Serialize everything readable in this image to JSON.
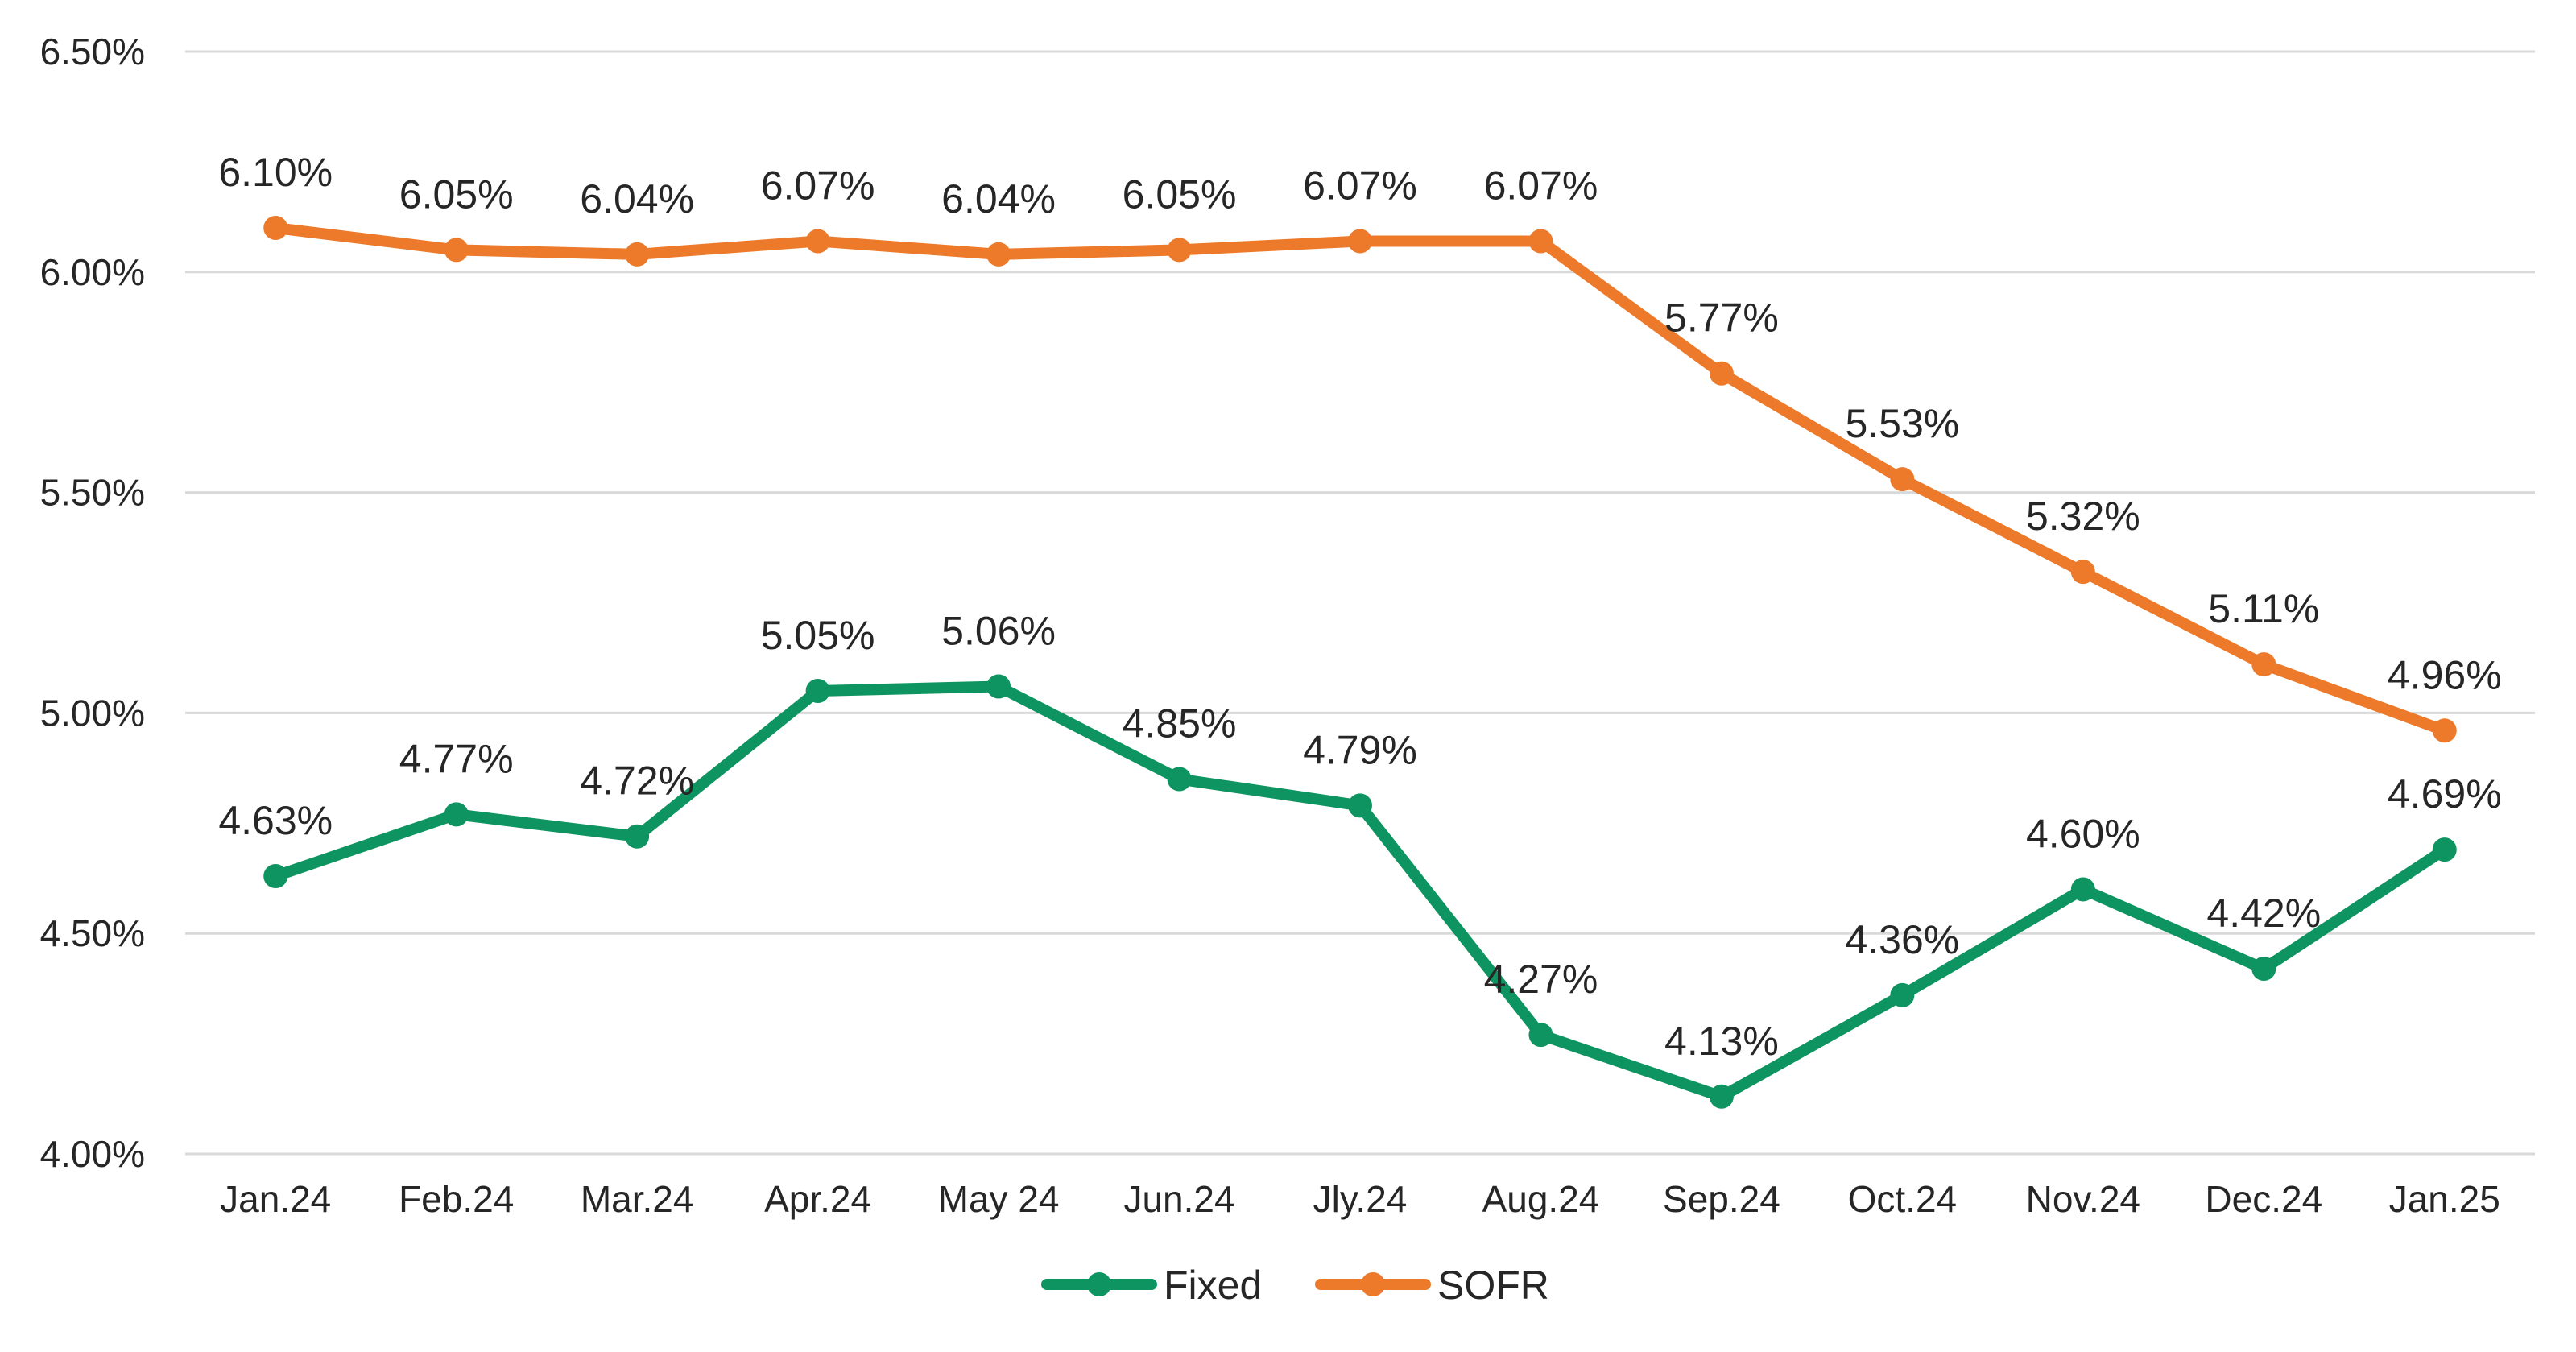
{
  "chart_data": {
    "type": "line",
    "categories": [
      "Jan.24",
      "Feb.24",
      "Mar.24",
      "Apr.24",
      "May 24",
      "Jun.24",
      "Jly.24",
      "Aug.24",
      "Sep.24",
      "Oct.24",
      "Nov.24",
      "Dec.24",
      "Jan.25"
    ],
    "series": [
      {
        "name": "Fixed",
        "color": "#0E9460",
        "values": [
          4.63,
          4.77,
          4.72,
          5.05,
          5.06,
          4.85,
          4.79,
          4.27,
          4.13,
          4.36,
          4.6,
          4.42,
          4.69
        ],
        "labels": [
          "4.63%",
          "4.77%",
          "4.72%",
          "5.05%",
          "5.06%",
          "4.85%",
          "4.79%",
          "4.27%",
          "4.13%",
          "4.36%",
          "4.60%",
          "4.42%",
          "4.69%"
        ]
      },
      {
        "name": "SOFR",
        "color": "#EC7A2A",
        "values": [
          6.1,
          6.05,
          6.04,
          6.07,
          6.04,
          6.05,
          6.07,
          6.07,
          5.77,
          5.53,
          5.32,
          5.11,
          4.96
        ],
        "labels": [
          "6.10%",
          "6.05%",
          "6.04%",
          "6.07%",
          "6.04%",
          "6.05%",
          "6.07%",
          "6.07%",
          "5.77%",
          "5.53%",
          "5.32%",
          "5.11%",
          "4.96%"
        ]
      }
    ],
    "y_ticks": [
      4.0,
      4.5,
      5.0,
      5.5,
      6.0,
      6.5
    ],
    "y_tick_labels": [
      "4.00%",
      "4.50%",
      "5.00%",
      "5.50%",
      "6.00%",
      "6.50%"
    ],
    "ylim": [
      4.0,
      6.5
    ],
    "title": "",
    "xlabel": "",
    "ylabel": "",
    "grid": true,
    "legend_position": "bottom-center",
    "gridline_color": "#D9D9D9"
  }
}
